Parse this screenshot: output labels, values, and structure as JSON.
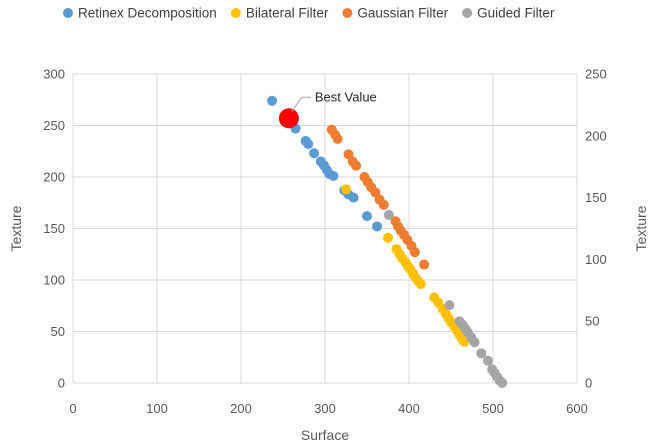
{
  "chart_data": {
    "type": "scatter",
    "xlabel": "Surface",
    "ylabel": "Texture",
    "y2label": "Texture",
    "xlim": [
      0,
      600
    ],
    "ylim": [
      0,
      300
    ],
    "y2lim": [
      0,
      250
    ],
    "xticks": [
      0,
      100,
      200,
      300,
      400,
      500,
      600
    ],
    "yticks": [
      0,
      50,
      100,
      150,
      200,
      250,
      300
    ],
    "y2ticks": [
      0,
      50,
      100,
      150,
      200,
      250
    ],
    "grid": true,
    "legend_position": "top",
    "series": [
      {
        "name": "Retinex Decomposition",
        "color": "#5B9BD5",
        "axis": "primary",
        "points": [
          [
            237,
            274
          ],
          [
            265,
            247
          ],
          [
            277,
            235
          ],
          [
            280,
            232
          ],
          [
            287,
            223
          ],
          [
            295,
            215
          ],
          [
            299,
            211
          ],
          [
            302,
            207
          ],
          [
            305,
            203
          ],
          [
            310,
            201
          ],
          [
            323,
            187
          ],
          [
            328,
            183
          ],
          [
            334,
            180
          ],
          [
            350,
            162
          ],
          [
            362,
            152
          ]
        ]
      },
      {
        "name": "Bilateral Filter",
        "color": "#FFC000",
        "axis": "primary",
        "points": [
          [
            325,
            188
          ],
          [
            375,
            141
          ],
          [
            385,
            130
          ],
          [
            389,
            125
          ],
          [
            392,
            121
          ],
          [
            396,
            117
          ],
          [
            399,
            113
          ],
          [
            402,
            110
          ],
          [
            405,
            106
          ],
          [
            408,
            102
          ],
          [
            411,
            99
          ],
          [
            414,
            96
          ],
          [
            430,
            83
          ],
          [
            435,
            78
          ],
          [
            440,
            72
          ],
          [
            444,
            67
          ],
          [
            447,
            63
          ],
          [
            450,
            59
          ],
          [
            454,
            55
          ],
          [
            457,
            51
          ],
          [
            460,
            47
          ],
          [
            463,
            43
          ],
          [
            466,
            40
          ]
        ]
      },
      {
        "name": "Gaussian Filter",
        "color": "#ED7D31",
        "axis": "primary",
        "points": [
          [
            308,
            246
          ],
          [
            312,
            241
          ],
          [
            315,
            237
          ],
          [
            328,
            222
          ],
          [
            333,
            215
          ],
          [
            337,
            211
          ],
          [
            347,
            200
          ],
          [
            351,
            195
          ],
          [
            355,
            190
          ],
          [
            360,
            185
          ],
          [
            365,
            178
          ],
          [
            370,
            173
          ],
          [
            384,
            157
          ],
          [
            387,
            152
          ],
          [
            390,
            148
          ],
          [
            394,
            144
          ],
          [
            398,
            139
          ],
          [
            403,
            133
          ],
          [
            407,
            127
          ],
          [
            418,
            115
          ]
        ]
      },
      {
        "name": "Guided Filter",
        "color": "#A5A5A5",
        "axis": "secondary",
        "points": [
          [
            376,
            136
          ],
          [
            448,
            63
          ],
          [
            460,
            50
          ],
          [
            464,
            47
          ],
          [
            467,
            44
          ],
          [
            470,
            41
          ],
          [
            474,
            37
          ],
          [
            478,
            33
          ],
          [
            486,
            24
          ],
          [
            494,
            18
          ],
          [
            499,
            11
          ],
          [
            502,
            8
          ],
          [
            505,
            5
          ],
          [
            508,
            2
          ],
          [
            511,
            0
          ]
        ]
      }
    ],
    "highlight": {
      "label": "Best Value",
      "x": 257,
      "y": 257,
      "color": "#FF0000"
    }
  }
}
